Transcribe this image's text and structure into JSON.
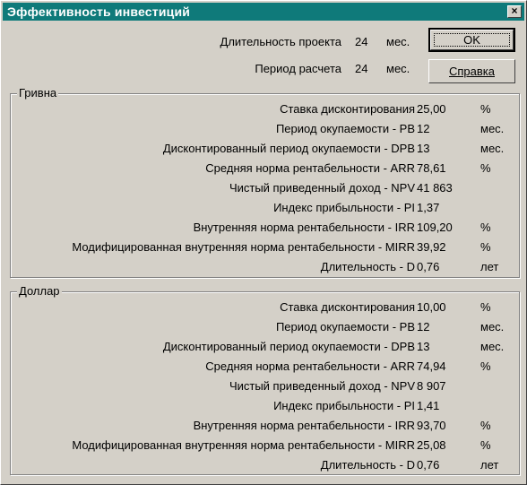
{
  "window": {
    "title": "Эффективность инвестиций",
    "close_symbol": "×"
  },
  "header": {
    "duration_label": "Длительность проекта",
    "duration_value": "24",
    "duration_unit": "мес.",
    "period_label": "Период расчета",
    "period_value": "24",
    "period_unit": "мес."
  },
  "buttons": {
    "ok": "OK",
    "help": "Справка"
  },
  "groups": [
    {
      "title": "Гривна",
      "rows": [
        {
          "label": "Ставка дисконтирования",
          "value": "25,00",
          "unit": "%"
        },
        {
          "label": "Период окупаемости - PB",
          "value": "12",
          "unit": "мес."
        },
        {
          "label": "Дисконтированный период окупаемости - DPB",
          "value": "13",
          "unit": "мес."
        },
        {
          "label": "Средняя норма рентабельности - ARR",
          "value": "78,61",
          "unit": "%"
        },
        {
          "label": "Чистый приведенный доход - NPV",
          "value": "41 863",
          "unit": ""
        },
        {
          "label": "Индекс прибыльности - PI",
          "value": "1,37",
          "unit": ""
        },
        {
          "label": "Внутренняя норма рентабельности - IRR",
          "value": "109,20",
          "unit": "%"
        },
        {
          "label": "Модифицированная внутренняя норма рентабельности - MIRR",
          "value": "39,92",
          "unit": "%"
        },
        {
          "label": "Длительность - D",
          "value": "0,76",
          "unit": "лет"
        }
      ]
    },
    {
      "title": "Доллар",
      "rows": [
        {
          "label": "Ставка дисконтирования",
          "value": "10,00",
          "unit": "%"
        },
        {
          "label": "Период окупаемости - PB",
          "value": "12",
          "unit": "мес."
        },
        {
          "label": "Дисконтированный период окупаемости - DPB",
          "value": "13",
          "unit": "мес."
        },
        {
          "label": "Средняя норма рентабельности - ARR",
          "value": "74,94",
          "unit": "%"
        },
        {
          "label": "Чистый приведенный доход - NPV",
          "value": "8 907",
          "unit": ""
        },
        {
          "label": "Индекс прибыльности - PI",
          "value": "1,41",
          "unit": ""
        },
        {
          "label": "Внутренняя норма рентабельности - IRR",
          "value": "93,70",
          "unit": "%"
        },
        {
          "label": "Модифицированная внутренняя норма рентабельности - MIRR",
          "value": "25,08",
          "unit": "%"
        },
        {
          "label": "Длительность - D",
          "value": "0,76",
          "unit": "лет"
        }
      ]
    }
  ],
  "colors": {
    "titlebar": "#0f7a7a",
    "face": "#d4d0c8"
  }
}
